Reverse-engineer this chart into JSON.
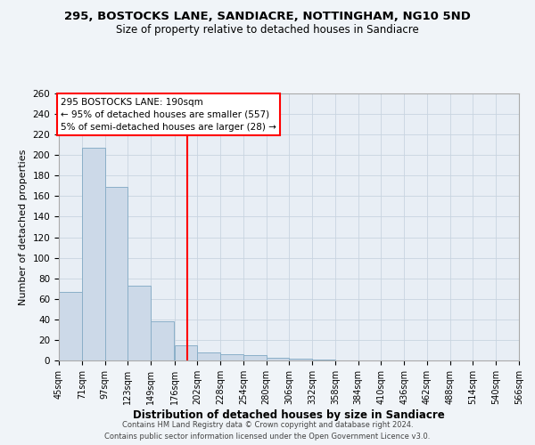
{
  "title": "295, BOSTOCKS LANE, SANDIACRE, NOTTINGHAM, NG10 5ND",
  "subtitle": "Size of property relative to detached houses in Sandiacre",
  "xlabel": "Distribution of detached houses by size in Sandiacre",
  "ylabel": "Number of detached properties",
  "bar_heights": [
    67,
    207,
    169,
    73,
    38,
    15,
    8,
    6,
    5,
    3,
    2,
    1,
    0,
    0,
    0,
    0,
    0,
    0,
    0,
    0
  ],
  "bin_edges": [
    45,
    71,
    97,
    123,
    149,
    176,
    202,
    228,
    254,
    280,
    306,
    332,
    358,
    384,
    410,
    436,
    462,
    488,
    514,
    540,
    566
  ],
  "bin_labels": [
    "45sqm",
    "71sqm",
    "97sqm",
    "123sqm",
    "149sqm",
    "176sqm",
    "202sqm",
    "228sqm",
    "254sqm",
    "280sqm",
    "306sqm",
    "332sqm",
    "358sqm",
    "384sqm",
    "410sqm",
    "436sqm",
    "462sqm",
    "488sqm",
    "514sqm",
    "540sqm",
    "566sqm"
  ],
  "bar_color": "#ccd9e8",
  "bar_edge_color": "#8aafc8",
  "property_line_x": 190,
  "property_line_color": "red",
  "ylim": [
    0,
    260
  ],
  "yticks": [
    0,
    20,
    40,
    60,
    80,
    100,
    120,
    140,
    160,
    180,
    200,
    220,
    240,
    260
  ],
  "annotation_title": "295 BOSTOCKS LANE: 190sqm",
  "annotation_line1": "← 95% of detached houses are smaller (557)",
  "annotation_line2": "5% of semi-detached houses are larger (28) →",
  "grid_color": "#c8d4e0",
  "bg_color": "#e8eef5",
  "footer1": "Contains HM Land Registry data © Crown copyright and database right 2024.",
  "footer2": "Contains public sector information licensed under the Open Government Licence v3.0.",
  "fig_bg": "#f0f4f8"
}
